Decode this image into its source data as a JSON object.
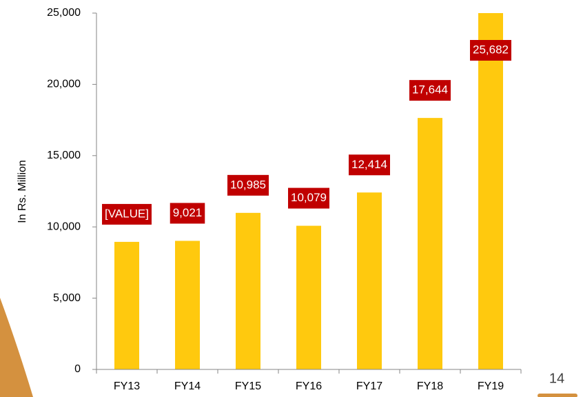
{
  "chart_data": {
    "type": "bar",
    "y_label": "In Rs. Million",
    "categories": [
      "FY13",
      "FY14",
      "FY15",
      "FY16",
      "FY17",
      "FY18",
      "FY19"
    ],
    "values": [
      8950,
      9021,
      10985,
      10079,
      12414,
      17644,
      25682
    ],
    "value_labels": [
      "[VALUE]",
      "9,021",
      "10,985",
      "10,079",
      "12,414",
      "17,644",
      "25,682"
    ],
    "color": "#ffc90e",
    "label_color": "#c00000",
    "ylim": [
      0,
      25000
    ],
    "yticks": [
      0,
      {
        "value": 5000,
        "label": "5,000"
      },
      {
        "value": 10000,
        "label": "10,000"
      },
      {
        "value": 15000,
        "label": "15,000"
      },
      {
        "value": 20000,
        "label": "20,000"
      },
      {
        "value": 25000,
        "label": "25,000"
      }
    ]
  },
  "page_number": "14"
}
